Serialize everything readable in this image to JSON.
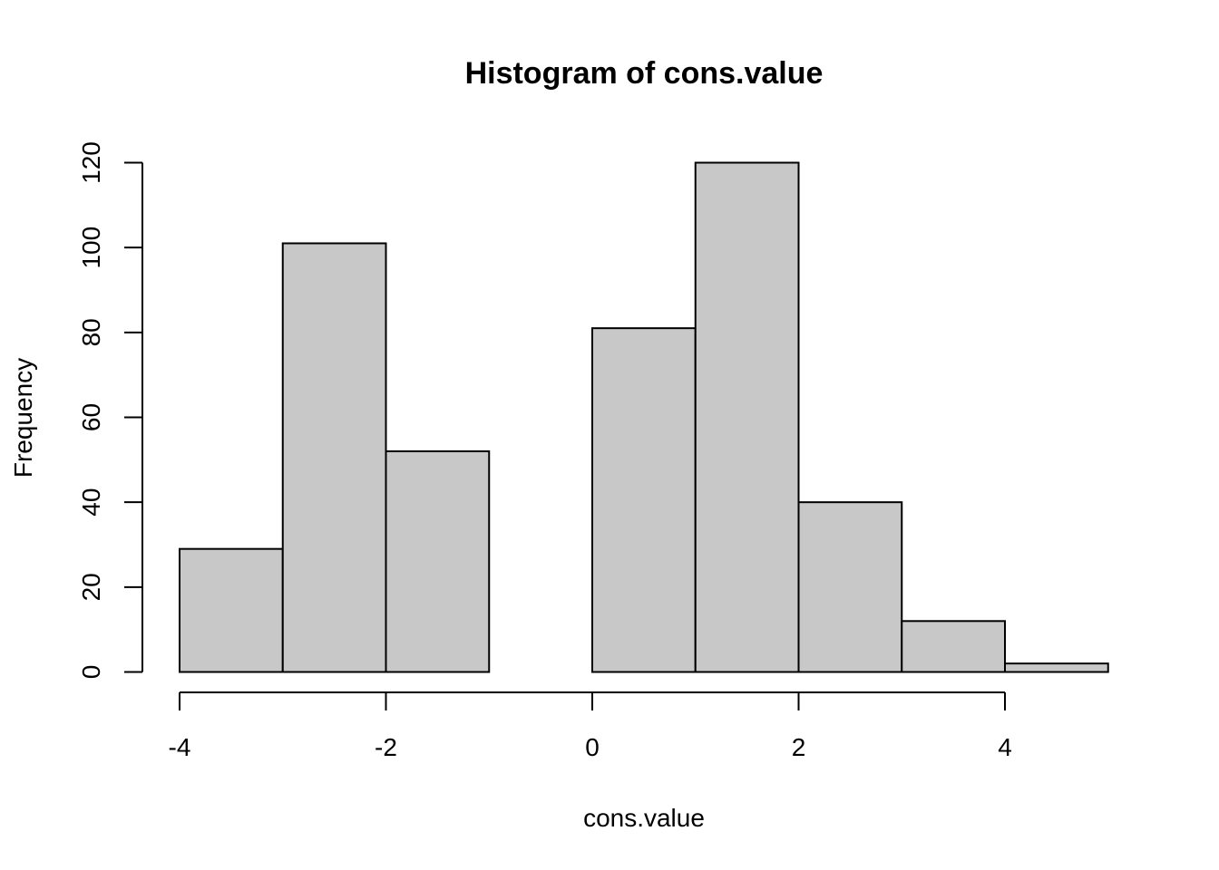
{
  "chart_data": {
    "type": "bar",
    "title": "Histogram of cons.value",
    "xlabel": "cons.value",
    "ylabel": "Frequency",
    "bins": [
      {
        "start": -4,
        "end": -3,
        "count": 29
      },
      {
        "start": -3,
        "end": -2,
        "count": 101
      },
      {
        "start": -2,
        "end": -1,
        "count": 52
      },
      {
        "start": -1,
        "end": 0,
        "count": 0
      },
      {
        "start": 0,
        "end": 1,
        "count": 81
      },
      {
        "start": 1,
        "end": 2,
        "count": 120
      },
      {
        "start": 2,
        "end": 3,
        "count": 40
      },
      {
        "start": 3,
        "end": 4,
        "count": 12
      },
      {
        "start": 4,
        "end": 5,
        "count": 2
      }
    ],
    "xlim": [
      -4,
      5
    ],
    "ylim": [
      0,
      120
    ],
    "x_ticks": [
      "-4",
      "-2",
      "0",
      "2",
      "4"
    ],
    "y_ticks": [
      "0",
      "20",
      "40",
      "60",
      "80",
      "100",
      "120"
    ],
    "bar_color": "#c8c8c8",
    "grid": false
  }
}
